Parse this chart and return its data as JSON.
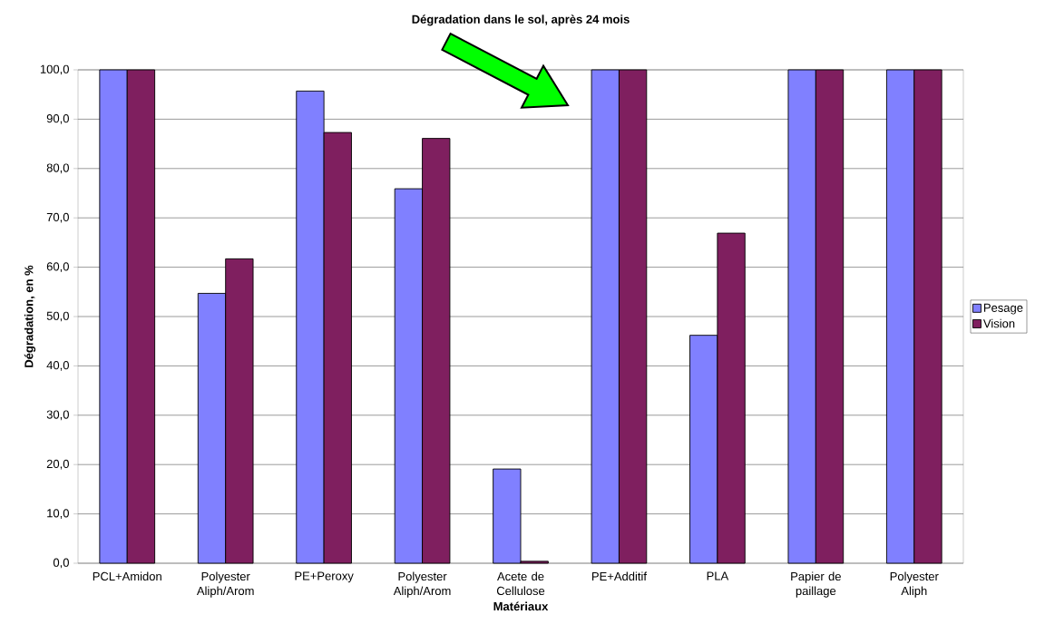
{
  "chart_data": {
    "type": "bar",
    "title": "Dégradation dans le sol, après 24 mois",
    "xlabel": "Matériaux",
    "ylabel": "Dégradation, en %",
    "categories": [
      "PCL+Amidon",
      "Polyester Aliph/Arom",
      "PE+Peroxy",
      "Polyester Aliph/Arom",
      "Acete de Cellulose",
      "PE+Additif",
      "PLA",
      "Papier de paillage",
      "Polyester Aliph"
    ],
    "series": [
      {
        "name": "Pesage",
        "color": "#8080ff",
        "values": [
          100,
          54.7,
          95.7,
          75.9,
          19.1,
          100,
          46.2,
          100,
          100
        ]
      },
      {
        "name": "Vision",
        "color": "#7f1f5f",
        "values": [
          100,
          61.7,
          87.3,
          86.1,
          0.4,
          100,
          66.9,
          100,
          100
        ]
      }
    ],
    "ylim": [
      0,
      100
    ],
    "yticks": [
      {
        "value": 0,
        "label": "0,0"
      },
      {
        "value": 10,
        "label": "10,0"
      },
      {
        "value": 20,
        "label": "20,0"
      },
      {
        "value": 30,
        "label": "30,0"
      },
      {
        "value": 40,
        "label": "40,0"
      },
      {
        "value": 50,
        "label": "50,0"
      },
      {
        "value": 60,
        "label": "60,0"
      },
      {
        "value": 70,
        "label": "70,0"
      },
      {
        "value": 80,
        "label": "80,0"
      },
      {
        "value": 90,
        "label": "90,0"
      },
      {
        "value": 100,
        "label": "100,0"
      }
    ],
    "grid": "y",
    "legend": "right"
  }
}
